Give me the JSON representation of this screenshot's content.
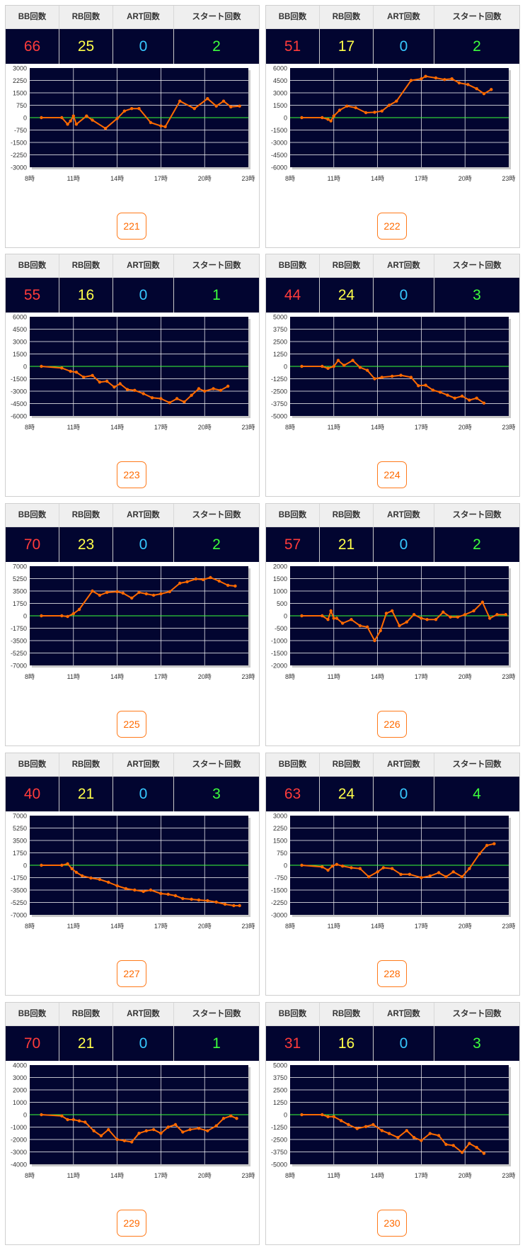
{
  "headers": {
    "bb": "BB回数",
    "rb": "RB回数",
    "art": "ART回数",
    "start": "スタート回数"
  },
  "colors": {
    "bb": "#ff3b3b",
    "rb": "#ffff4a",
    "art": "#37c8ff",
    "start": "#3cff3c",
    "chart_bg": "#020530",
    "line": "#ff6a00",
    "zero_line": "#39ff39",
    "button": "#ff6a00"
  },
  "machines": [
    {
      "id": "221",
      "bb": "66",
      "rb": "25",
      "art": "0",
      "start": "2"
    },
    {
      "id": "222",
      "bb": "51",
      "rb": "17",
      "art": "0",
      "start": "2"
    },
    {
      "id": "223",
      "bb": "55",
      "rb": "16",
      "art": "0",
      "start": "1"
    },
    {
      "id": "224",
      "bb": "44",
      "rb": "24",
      "art": "0",
      "start": "3"
    },
    {
      "id": "225",
      "bb": "70",
      "rb": "23",
      "art": "0",
      "start": "2"
    },
    {
      "id": "226",
      "bb": "57",
      "rb": "21",
      "art": "0",
      "start": "2"
    },
    {
      "id": "227",
      "bb": "40",
      "rb": "21",
      "art": "0",
      "start": "3"
    },
    {
      "id": "228",
      "bb": "63",
      "rb": "24",
      "art": "0",
      "start": "4"
    },
    {
      "id": "229",
      "bb": "70",
      "rb": "21",
      "art": "0",
      "start": "1"
    },
    {
      "id": "230",
      "bb": "31",
      "rb": "16",
      "art": "0",
      "start": "3"
    }
  ],
  "chart_data": [
    {
      "type": "line",
      "machine": "221",
      "x_ticks": [
        "8時",
        "11時",
        "14時",
        "17時",
        "20時",
        "23時"
      ],
      "y_ticks": [
        "3000",
        "2250",
        "1500",
        "750",
        "0",
        "-750",
        "-1500",
        "-2250",
        "-3000"
      ],
      "ylim": [
        -3000,
        3000
      ],
      "xlim": [
        8,
        23
      ],
      "x": [
        8.8,
        10.2,
        10.6,
        10.8,
        11.0,
        11.2,
        11.9,
        12.3,
        13.2,
        14.0,
        14.5,
        15.0,
        15.5,
        16.3,
        17.0,
        17.3,
        18.3,
        19.3,
        20.2,
        20.8,
        21.3,
        21.8,
        22.4
      ],
      "y": [
        0,
        0,
        -400,
        -200,
        100,
        -400,
        100,
        -150,
        -650,
        -50,
        400,
        550,
        550,
        -300,
        -500,
        -550,
        1000,
        550,
        1150,
        700,
        1000,
        650,
        700
      ]
    },
    {
      "type": "line",
      "machine": "222",
      "x_ticks": [
        "8時",
        "11時",
        "14時",
        "17時",
        "20時",
        "23時"
      ],
      "y_ticks": [
        "6000",
        "4500",
        "3000",
        "1500",
        "0",
        "-1500",
        "-3000",
        "-4500",
        "-6000"
      ],
      "ylim": [
        -6000,
        6000
      ],
      "xlim": [
        8,
        23
      ],
      "x": [
        8.8,
        10.2,
        10.6,
        10.8,
        11.0,
        11.4,
        11.9,
        12.5,
        13.2,
        13.8,
        14.3,
        14.8,
        15.3,
        16.3,
        17.0,
        17.3,
        18.0,
        18.6,
        19.1,
        19.6,
        20.2,
        20.8,
        21.3,
        21.8
      ],
      "y": [
        0,
        0,
        -200,
        -400,
        200,
        900,
        1400,
        1200,
        600,
        650,
        800,
        1500,
        2000,
        4500,
        4700,
        5000,
        4800,
        4600,
        4700,
        4200,
        4000,
        3500,
        2900,
        3400
      ]
    },
    {
      "type": "line",
      "machine": "223",
      "x_ticks": [
        "8時",
        "11時",
        "14時",
        "17時",
        "20時",
        "23時"
      ],
      "y_ticks": [
        "6000",
        "4500",
        "3000",
        "1500",
        "0",
        "-1500",
        "-3000",
        "-4500",
        "-6000"
      ],
      "ylim": [
        -6000,
        6000
      ],
      "xlim": [
        8,
        23
      ],
      "x": [
        8.8,
        10.2,
        10.8,
        11.2,
        11.7,
        12.3,
        12.8,
        13.3,
        13.8,
        14.2,
        14.7,
        15.2,
        15.8,
        16.4,
        17.0,
        17.6,
        18.1,
        18.6,
        19.1,
        19.6,
        20.0,
        20.6,
        21.1,
        21.6
      ],
      "y": [
        0,
        -200,
        -600,
        -700,
        -1300,
        -1100,
        -1900,
        -1800,
        -2500,
        -2100,
        -2800,
        -2900,
        -3300,
        -3800,
        -3900,
        -4400,
        -3900,
        -4300,
        -3500,
        -2700,
        -3000,
        -2700,
        -2900,
        -2400
      ]
    },
    {
      "type": "line",
      "machine": "224",
      "x_ticks": [
        "8時",
        "11時",
        "14時",
        "17時",
        "20時",
        "23時"
      ],
      "y_ticks": [
        "5000",
        "3750",
        "2500",
        "1250",
        "0",
        "-1250",
        "-2500",
        "-3750",
        "-5000"
      ],
      "ylim": [
        -5000,
        5000
      ],
      "xlim": [
        8,
        23
      ],
      "x": [
        8.8,
        10.2,
        10.6,
        11.0,
        11.3,
        11.7,
        12.3,
        12.8,
        13.3,
        13.8,
        14.3,
        15.0,
        15.6,
        16.3,
        16.8,
        17.3,
        17.8,
        18.3,
        18.8,
        19.3,
        19.8,
        20.3,
        20.8,
        21.3
      ],
      "y": [
        0,
        0,
        -200,
        0,
        600,
        100,
        600,
        -100,
        -400,
        -1250,
        -1100,
        -1000,
        -900,
        -1100,
        -1950,
        -1900,
        -2400,
        -2600,
        -2900,
        -3200,
        -3000,
        -3400,
        -3200,
        -3700
      ]
    },
    {
      "type": "line",
      "machine": "225",
      "x_ticks": [
        "8時",
        "11時",
        "14時",
        "17時",
        "20時",
        "23時"
      ],
      "y_ticks": [
        "7000",
        "5250",
        "3500",
        "1750",
        "0",
        "-1750",
        "-3500",
        "-5250",
        "-7000"
      ],
      "ylim": [
        -7000,
        7000
      ],
      "xlim": [
        8,
        23
      ],
      "x": [
        8.8,
        10.2,
        10.6,
        11.0,
        11.4,
        12.3,
        12.8,
        13.3,
        14.0,
        14.4,
        15.0,
        15.5,
        16.0,
        16.5,
        17.0,
        17.6,
        18.3,
        18.8,
        19.4,
        19.9,
        20.4,
        21.0,
        21.6,
        22.1
      ],
      "y": [
        0,
        0,
        -100,
        300,
        900,
        3500,
        2900,
        3300,
        3400,
        3200,
        2500,
        3300,
        3100,
        2900,
        3100,
        3400,
        4600,
        4800,
        5200,
        5100,
        5400,
        4900,
        4300,
        4200
      ]
    },
    {
      "type": "line",
      "machine": "226",
      "x_ticks": [
        "8時",
        "11時",
        "14時",
        "17時",
        "20時",
        "23時"
      ],
      "y_ticks": [
        "2000",
        "1500",
        "1000",
        "500",
        "0",
        "-500",
        "-1000",
        "-1500",
        "-2000"
      ],
      "ylim": [
        -2000,
        2000
      ],
      "xlim": [
        8,
        23
      ],
      "x": [
        8.8,
        10.2,
        10.6,
        10.8,
        11.0,
        11.2,
        11.6,
        12.2,
        12.8,
        13.3,
        13.8,
        14.2,
        14.6,
        15.0,
        15.5,
        16.0,
        16.5,
        17.0,
        17.4,
        18.0,
        18.5,
        19.0,
        19.5,
        20.0,
        20.6,
        21.2,
        21.7,
        22.2,
        22.8
      ],
      "y": [
        0,
        0,
        -150,
        200,
        -100,
        -100,
        -300,
        -150,
        -400,
        -450,
        -1000,
        -600,
        100,
        200,
        -400,
        -250,
        50,
        -100,
        -150,
        -150,
        150,
        -50,
        -50,
        50,
        200,
        550,
        -100,
        50,
        50
      ]
    },
    {
      "type": "line",
      "machine": "227",
      "x_ticks": [
        "8時",
        "11時",
        "14時",
        "17時",
        "20時",
        "23時"
      ],
      "y_ticks": [
        "7000",
        "5250",
        "3500",
        "1750",
        "0",
        "-1750",
        "-3500",
        "-5250",
        "-7000"
      ],
      "ylim": [
        -7000,
        7000
      ],
      "xlim": [
        8,
        23
      ],
      "x": [
        8.8,
        10.2,
        10.6,
        10.9,
        11.2,
        11.6,
        12.2,
        12.8,
        13.4,
        14.0,
        14.6,
        15.2,
        15.8,
        16.3,
        17.0,
        17.5,
        18.0,
        18.5,
        19.1,
        19.6,
        20.2,
        20.8,
        21.4,
        22.0,
        22.4
      ],
      "y": [
        0,
        0,
        200,
        -500,
        -1000,
        -1500,
        -1800,
        -2000,
        -2400,
        -2900,
        -3300,
        -3500,
        -3700,
        -3500,
        -4000,
        -4100,
        -4300,
        -4700,
        -4800,
        -4900,
        -5000,
        -5200,
        -5500,
        -5700,
        -5700
      ]
    },
    {
      "type": "line",
      "machine": "228",
      "x_ticks": [
        "8時",
        "11時",
        "14時",
        "17時",
        "20時",
        "23時"
      ],
      "y_ticks": [
        "3000",
        "2250",
        "1500",
        "750",
        "0",
        "-750",
        "-1500",
        "-2250",
        "-3000"
      ],
      "ylim": [
        -3000,
        3000
      ],
      "xlim": [
        8,
        23
      ],
      "x": [
        8.8,
        10.2,
        10.6,
        10.9,
        11.2,
        11.6,
        12.2,
        12.8,
        13.4,
        14.0,
        14.4,
        15.0,
        15.6,
        16.2,
        17.0,
        17.6,
        18.2,
        18.7,
        19.2,
        19.8,
        20.3,
        21.0,
        21.5,
        22.0
      ],
      "y": [
        0,
        -100,
        -300,
        -50,
        50,
        -50,
        -150,
        -200,
        -700,
        -400,
        -150,
        -200,
        -550,
        -550,
        -750,
        -650,
        -450,
        -700,
        -400,
        -700,
        -200,
        700,
        1200,
        1300
      ]
    },
    {
      "type": "line",
      "machine": "229",
      "x_ticks": [
        "8時",
        "11時",
        "14時",
        "17時",
        "20時",
        "23時"
      ],
      "y_ticks": [
        "4000",
        "3000",
        "2000",
        "1000",
        "0",
        "-1000",
        "-2000",
        "-3000",
        "-4000"
      ],
      "ylim": [
        -4000,
        4000
      ],
      "xlim": [
        8,
        23
      ],
      "x": [
        8.8,
        10.2,
        10.6,
        11.0,
        11.4,
        11.8,
        12.4,
        12.9,
        13.4,
        14.0,
        14.5,
        15.0,
        15.5,
        16.0,
        16.5,
        17.0,
        17.5,
        18.0,
        18.5,
        19.0,
        19.6,
        20.2,
        20.8,
        21.3,
        21.8,
        22.2
      ],
      "y": [
        0,
        -100,
        -400,
        -400,
        -500,
        -600,
        -1300,
        -1700,
        -1200,
        -2000,
        -2100,
        -2200,
        -1500,
        -1300,
        -1200,
        -1500,
        -1000,
        -800,
        -1400,
        -1200,
        -1100,
        -1300,
        -900,
        -300,
        -100,
        -300
      ]
    },
    {
      "type": "line",
      "machine": "230",
      "x_ticks": [
        "8時",
        "11時",
        "14時",
        "17時",
        "20時",
        "23時"
      ],
      "y_ticks": [
        "5000",
        "3750",
        "2500",
        "1250",
        "0",
        "-1250",
        "-2500",
        "-3750",
        "-5000"
      ],
      "ylim": [
        -5000,
        5000
      ],
      "xlim": [
        8,
        23
      ],
      "x": [
        8.8,
        10.2,
        10.6,
        11.0,
        11.5,
        12.0,
        12.6,
        13.2,
        13.7,
        14.3,
        14.8,
        15.4,
        16.0,
        16.5,
        17.0,
        17.6,
        18.2,
        18.7,
        19.2,
        19.8,
        20.3,
        20.8,
        21.3
      ],
      "y": [
        0,
        0,
        -200,
        -200,
        -600,
        -1000,
        -1400,
        -1200,
        -1000,
        -1600,
        -1900,
        -2300,
        -1600,
        -2300,
        -2600,
        -1900,
        -2100,
        -3000,
        -3100,
        -3800,
        -2900,
        -3300,
        -3900
      ]
    }
  ]
}
